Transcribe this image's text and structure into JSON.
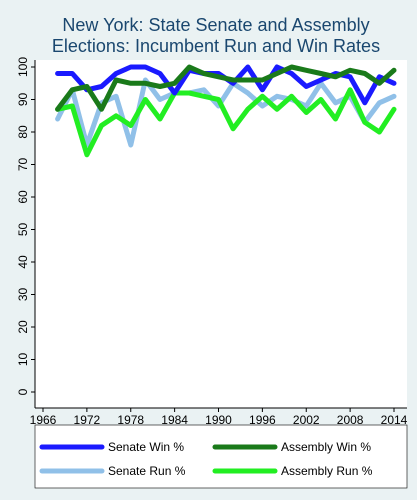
{
  "chart_data": {
    "type": "line",
    "title_lines": [
      "New York: State Senate and Assembly",
      "Elections: Incumbent Run and Win Rates"
    ],
    "xlabel": "",
    "ylabel": "",
    "xlim": [
      1966,
      2014
    ],
    "ylim": [
      0,
      100
    ],
    "x_ticks": [
      1966,
      1972,
      1978,
      1984,
      1990,
      1996,
      2002,
      2008,
      2014
    ],
    "y_ticks": [
      0,
      10,
      20,
      30,
      40,
      50,
      60,
      70,
      80,
      90,
      100
    ],
    "grid": false,
    "legend_position": "bottom",
    "x": [
      1968,
      1970,
      1972,
      1974,
      1976,
      1978,
      1980,
      1982,
      1984,
      1986,
      1988,
      1990,
      1992,
      1994,
      1996,
      1998,
      2000,
      2002,
      2004,
      2006,
      2008,
      2010,
      2012,
      2014
    ],
    "series": [
      {
        "name": "Senate Win %",
        "color": "#1a1aff",
        "values": [
          98,
          98,
          93,
          94,
          98,
          100,
          100,
          98,
          92,
          99,
          98,
          98,
          95,
          100,
          93,
          100,
          98,
          94,
          96,
          98,
          97,
          89,
          97,
          95
        ]
      },
      {
        "name": "Assembly Win %",
        "color": "#1a7a1a",
        "values": [
          87,
          93,
          94,
          87,
          96,
          95,
          95,
          94,
          95,
          100,
          98,
          97,
          96,
          96,
          96,
          98,
          100,
          99,
          98,
          97,
          99,
          98,
          95,
          99
        ]
      },
      {
        "name": "Senate Run %",
        "color": "#90c0e8",
        "values": [
          84,
          93,
          76,
          89,
          91,
          76,
          96,
          90,
          92,
          92,
          93,
          88,
          95,
          92,
          88,
          91,
          90,
          88,
          95,
          89,
          91,
          83,
          89,
          91
        ]
      },
      {
        "name": "Assembly Run %",
        "color": "#22ee22",
        "values": [
          87,
          88,
          73,
          82,
          85,
          82,
          90,
          84,
          92,
          92,
          91,
          90,
          81,
          87,
          91,
          87,
          91,
          86,
          90,
          84,
          93,
          83,
          80,
          87
        ]
      }
    ]
  }
}
